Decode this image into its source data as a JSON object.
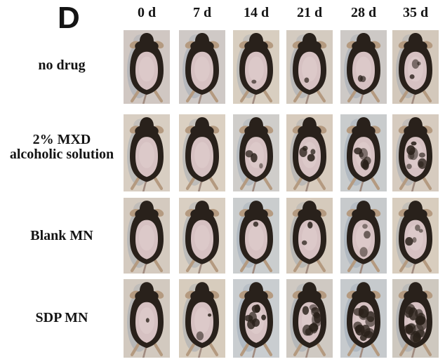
{
  "panel": {
    "label": "D"
  },
  "timepoints": [
    "0 d",
    "7 d",
    "14 d",
    "21 d",
    "28 d",
    "35 d"
  ],
  "groups": [
    {
      "label": "no drug",
      "label_lines": [
        "no drug"
      ],
      "mice": [
        {
          "timepoint": "0 d",
          "regrowth": 0.0,
          "bg": "#d0c7c2"
        },
        {
          "timepoint": "7 d",
          "regrowth": 0.01,
          "bg": "#cfc9c6"
        },
        {
          "timepoint": "14 d",
          "regrowth": 0.03,
          "bg": "#d8cec0"
        },
        {
          "timepoint": "21 d",
          "regrowth": 0.04,
          "bg": "#d4cbc0"
        },
        {
          "timepoint": "28 d",
          "regrowth": 0.09,
          "bg": "#cdc9c6"
        },
        {
          "timepoint": "35 d",
          "regrowth": 0.13,
          "bg": "#d3c8bb"
        }
      ]
    },
    {
      "label": "2% MXD alcoholic solution",
      "label_lines": [
        "2% MXD",
        "alcoholic solution"
      ],
      "mice": [
        {
          "timepoint": "0 d",
          "regrowth": 0.0,
          "bg": "#d8cec2"
        },
        {
          "timepoint": "7 d",
          "regrowth": 0.02,
          "bg": "#dbd0c2"
        },
        {
          "timepoint": "14 d",
          "regrowth": 0.13,
          "bg": "#cfcdca"
        },
        {
          "timepoint": "21 d",
          "regrowth": 0.2,
          "bg": "#d7cbbd"
        },
        {
          "timepoint": "28 d",
          "regrowth": 0.32,
          "bg": "#c9cccd"
        },
        {
          "timepoint": "35 d",
          "regrowth": 0.42,
          "bg": "#d6cbbf"
        }
      ]
    },
    {
      "label": "Blank MN",
      "label_lines": [
        "Blank MN"
      ],
      "mice": [
        {
          "timepoint": "0 d",
          "regrowth": 0.01,
          "bg": "#d4cabf"
        },
        {
          "timepoint": "7 d",
          "regrowth": 0.02,
          "bg": "#d9cfc2"
        },
        {
          "timepoint": "14 d",
          "regrowth": 0.05,
          "bg": "#cacdce"
        },
        {
          "timepoint": "21 d",
          "regrowth": 0.1,
          "bg": "#d5cabc"
        },
        {
          "timepoint": "28 d",
          "regrowth": 0.16,
          "bg": "#c7cacc"
        },
        {
          "timepoint": "35 d",
          "regrowth": 0.2,
          "bg": "#d8cdbe"
        }
      ]
    },
    {
      "label": "SDP MN",
      "label_lines": [
        "SDP MN"
      ],
      "mice": [
        {
          "timepoint": "0 d",
          "regrowth": 0.06,
          "bg": "#d2c9bf"
        },
        {
          "timepoint": "7 d",
          "regrowth": 0.12,
          "bg": "#d7ccbd"
        },
        {
          "timepoint": "14 d",
          "regrowth": 0.35,
          "bg": "#c9cdd0"
        },
        {
          "timepoint": "21 d",
          "regrowth": 0.55,
          "bg": "#cfc9c2"
        },
        {
          "timepoint": "28 d",
          "regrowth": 0.62,
          "bg": "#c6cacd"
        },
        {
          "timepoint": "35 d",
          "regrowth": 0.8,
          "bg": "#cec8bf"
        }
      ]
    }
  ],
  "colors": {
    "page_bg": "#ffffff",
    "text": "#141414",
    "mouse_body": "#29211b",
    "bald_skin": "#d6c1c2",
    "bald_skin_hi": "#e2cfcf",
    "ear": "#b49a80",
    "tail": "#a08b80",
    "shadow": "#7b8da4",
    "regrown_hair": "#2a211a"
  }
}
